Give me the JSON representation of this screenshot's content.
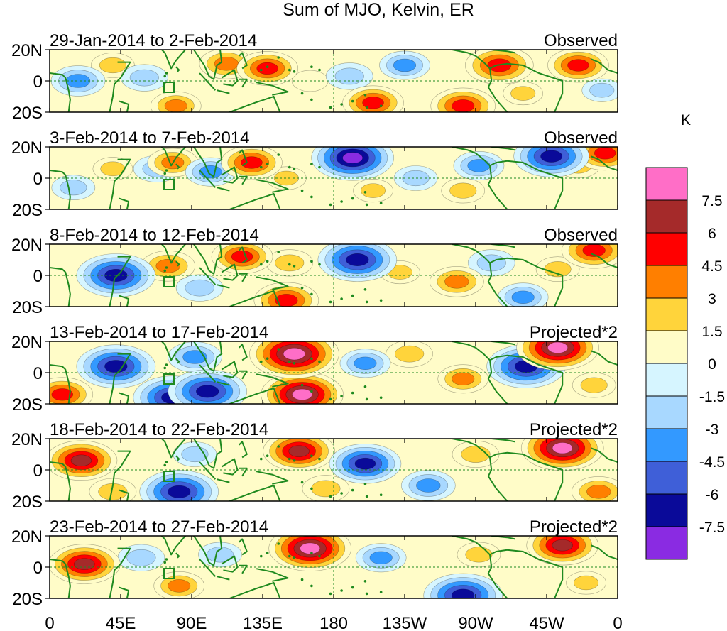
{
  "chart_data": {
    "type": "heatmap",
    "title": "Sum of MJO, Kelvin, ER",
    "units": "K",
    "y_ticks": [
      "20N",
      "0",
      "20S"
    ],
    "x_ticks": [
      "0",
      "45E",
      "90E",
      "135E",
      "180",
      "135W",
      "90W",
      "45W",
      "0"
    ],
    "x_range_deg_east": [
      0,
      360
    ],
    "y_range_deg": [
      -20,
      20
    ],
    "colorbar": {
      "levels": [
        7.5,
        6,
        4.5,
        3,
        1.5,
        0,
        -1.5,
        -3,
        -4.5,
        -6,
        -7.5
      ],
      "colors": [
        "#ff6ec7",
        "#a52a2a",
        "#ff0000",
        "#ff7f00",
        "#ffd43b",
        "#fffcc8",
        "#d6f5ff",
        "#a8d8ff",
        "#3399ff",
        "#3f5fd8",
        "#0a0a99",
        "#8a2be2"
      ]
    },
    "panels": [
      {
        "date_range": "29-Jan-2014 to 2-Feb-2014",
        "kind": "Observed",
        "anomalies": [
          {
            "lon": 18,
            "lat": 0,
            "value": -4.0
          },
          {
            "lon": 40,
            "lat": 10,
            "value": 2.5
          },
          {
            "lon": 60,
            "lat": 2,
            "value": -3.0
          },
          {
            "lon": 80,
            "lat": -16,
            "value": 3.5
          },
          {
            "lon": 112,
            "lat": 11,
            "value": 4.0
          },
          {
            "lon": 138,
            "lat": 8,
            "value": 5.0
          },
          {
            "lon": 165,
            "lat": 0,
            "value": 1.5
          },
          {
            "lon": 190,
            "lat": 3,
            "value": -3.0
          },
          {
            "lon": 205,
            "lat": -14,
            "value": 5.0
          },
          {
            "lon": 225,
            "lat": 10,
            "value": -3.5
          },
          {
            "lon": 262,
            "lat": -16,
            "value": 5.5
          },
          {
            "lon": 285,
            "lat": 10,
            "value": 6.0
          },
          {
            "lon": 300,
            "lat": -8,
            "value": 2.0
          },
          {
            "lon": 335,
            "lat": 10,
            "value": 5.0
          },
          {
            "lon": 350,
            "lat": -6,
            "value": -2.0
          }
        ]
      },
      {
        "date_range": "3-Feb-2014 to 7-Feb-2014",
        "kind": "Observed",
        "anomalies": [
          {
            "lon": 15,
            "lat": -6,
            "value": -2.5
          },
          {
            "lon": 40,
            "lat": 6,
            "value": 2.0
          },
          {
            "lon": 68,
            "lat": 6,
            "value": -3.0
          },
          {
            "lon": 78,
            "lat": 10,
            "value": 3.5
          },
          {
            "lon": 102,
            "lat": 4,
            "value": -3.5
          },
          {
            "lon": 128,
            "lat": 10,
            "value": 5.0
          },
          {
            "lon": 150,
            "lat": 0,
            "value": 2.0
          },
          {
            "lon": 192,
            "lat": 13,
            "value": -8.0
          },
          {
            "lon": 205,
            "lat": -8,
            "value": 2.0
          },
          {
            "lon": 232,
            "lat": 0,
            "value": -2.5
          },
          {
            "lon": 262,
            "lat": -8,
            "value": 2.5
          },
          {
            "lon": 272,
            "lat": 8,
            "value": -3.5
          },
          {
            "lon": 318,
            "lat": 14,
            "value": -7.0
          },
          {
            "lon": 335,
            "lat": 8,
            "value": 2.5
          },
          {
            "lon": 352,
            "lat": 16,
            "value": 5.0
          }
        ]
      },
      {
        "date_range": "8-Feb-2014 to 12-Feb-2014",
        "kind": "Observed",
        "anomalies": [
          {
            "lon": 42,
            "lat": 0,
            "value": -7.5
          },
          {
            "lon": 75,
            "lat": 6,
            "value": 4.0
          },
          {
            "lon": 95,
            "lat": -8,
            "value": -3.0
          },
          {
            "lon": 122,
            "lat": 12,
            "value": 5.0
          },
          {
            "lon": 152,
            "lat": 8,
            "value": 3.0
          },
          {
            "lon": 150,
            "lat": -16,
            "value": 5.5
          },
          {
            "lon": 195,
            "lat": 10,
            "value": -7.5
          },
          {
            "lon": 222,
            "lat": 2,
            "value": 2.0
          },
          {
            "lon": 258,
            "lat": -4,
            "value": 4.0
          },
          {
            "lon": 280,
            "lat": 8,
            "value": -3.0
          },
          {
            "lon": 300,
            "lat": -14,
            "value": -3.5
          },
          {
            "lon": 322,
            "lat": 4,
            "value": 2.5
          },
          {
            "lon": 345,
            "lat": 16,
            "value": 5.5
          }
        ]
      },
      {
        "date_range": "13-Feb-2014 to 17-Feb-2014",
        "kind": "Projected*2",
        "anomalies": [
          {
            "lon": 8,
            "lat": -14,
            "value": 5.0
          },
          {
            "lon": 42,
            "lat": 4,
            "value": -7.5
          },
          {
            "lon": 78,
            "lat": -16,
            "value": -7.5
          },
          {
            "lon": 92,
            "lat": 10,
            "value": -4.0
          },
          {
            "lon": 100,
            "lat": -12,
            "value": -7.5
          },
          {
            "lon": 155,
            "lat": 12,
            "value": 9.0
          },
          {
            "lon": 160,
            "lat": -14,
            "value": 8.0
          },
          {
            "lon": 200,
            "lat": 6,
            "value": -3.5
          },
          {
            "lon": 228,
            "lat": 12,
            "value": 3.0
          },
          {
            "lon": 262,
            "lat": -4,
            "value": 3.5
          },
          {
            "lon": 302,
            "lat": 4,
            "value": -7.5
          },
          {
            "lon": 322,
            "lat": 16,
            "value": 8.0
          },
          {
            "lon": 345,
            "lat": -8,
            "value": 2.5
          }
        ]
      },
      {
        "date_range": "18-Feb-2014 to 22-Feb-2014",
        "kind": "Projected*2",
        "anomalies": [
          {
            "lon": 20,
            "lat": 6,
            "value": 6.5
          },
          {
            "lon": 40,
            "lat": -14,
            "value": 3.0
          },
          {
            "lon": 82,
            "lat": -14,
            "value": -7.5
          },
          {
            "lon": 92,
            "lat": 10,
            "value": -2.5
          },
          {
            "lon": 158,
            "lat": 12,
            "value": 6.5
          },
          {
            "lon": 175,
            "lat": -12,
            "value": 3.0
          },
          {
            "lon": 200,
            "lat": 4,
            "value": -6.5
          },
          {
            "lon": 240,
            "lat": -10,
            "value": -4.0
          },
          {
            "lon": 270,
            "lat": 10,
            "value": 3.0
          },
          {
            "lon": 325,
            "lat": 14,
            "value": 8.0
          },
          {
            "lon": 348,
            "lat": -14,
            "value": 4.0
          }
        ]
      },
      {
        "date_range": "23-Feb-2014 to 27-Feb-2014",
        "kind": "Projected*2",
        "anomalies": [
          {
            "lon": 22,
            "lat": 2,
            "value": 6.5
          },
          {
            "lon": 58,
            "lat": 6,
            "value": -3.0
          },
          {
            "lon": 82,
            "lat": -12,
            "value": 3.5
          },
          {
            "lon": 108,
            "lat": 8,
            "value": -2.5
          },
          {
            "lon": 165,
            "lat": 12,
            "value": 8.0
          },
          {
            "lon": 210,
            "lat": 6,
            "value": -3.5
          },
          {
            "lon": 262,
            "lat": -18,
            "value": -7.5
          },
          {
            "lon": 272,
            "lat": 8,
            "value": 2.5
          },
          {
            "lon": 325,
            "lat": 14,
            "value": 6.5
          },
          {
            "lon": 340,
            "lat": -10,
            "value": 2.0
          }
        ]
      }
    ]
  }
}
